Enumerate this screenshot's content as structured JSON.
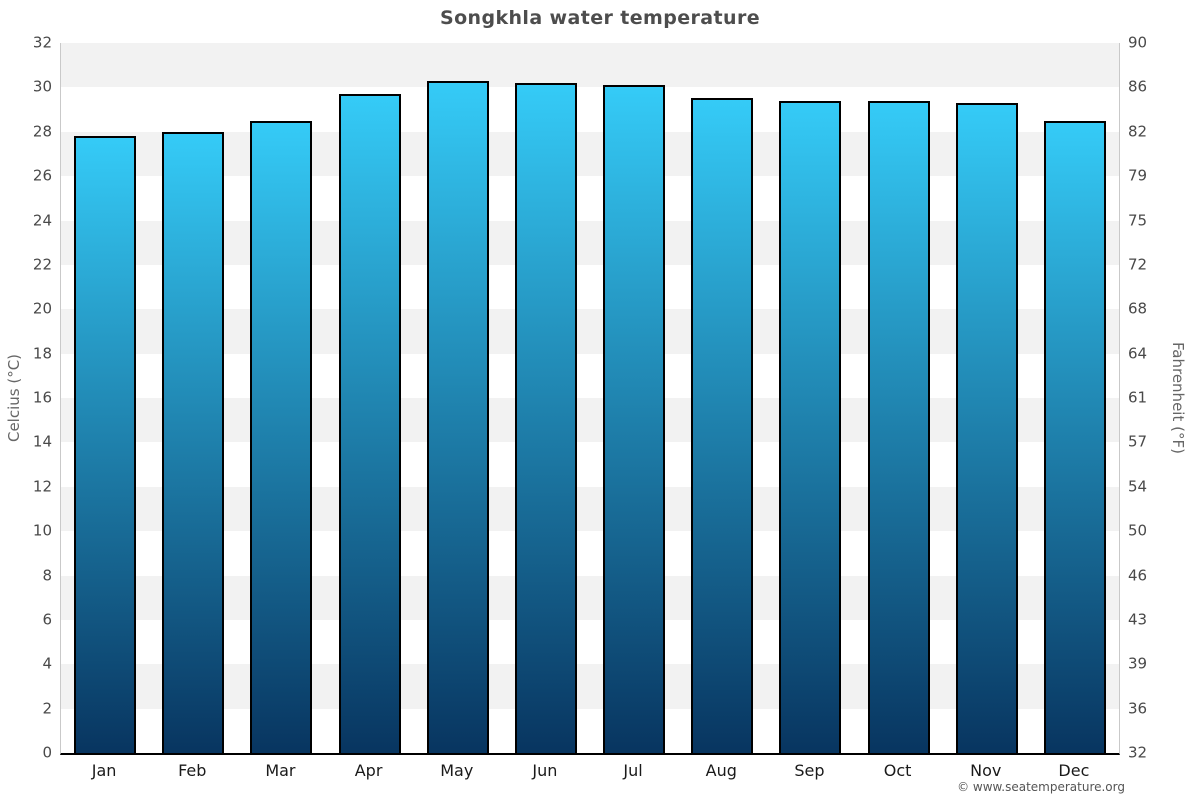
{
  "title": "Songkhla water temperature",
  "footer": "© www.seatemperature.org",
  "chart_data": {
    "type": "bar",
    "title": "Songkhla water temperature",
    "categories": [
      "Jan",
      "Feb",
      "Mar",
      "Apr",
      "May",
      "Jun",
      "Jul",
      "Aug",
      "Sep",
      "Oct",
      "Nov",
      "Dec"
    ],
    "values": [
      27.8,
      28.0,
      28.5,
      29.7,
      30.3,
      30.2,
      30.1,
      29.5,
      29.4,
      29.4,
      29.3,
      28.5
    ],
    "series_name": "Water temperature (°C)",
    "xlabel": "",
    "ylabel_left": "Celcius (°C)",
    "ylabel_right": "Fahrenheit (°F)",
    "ylim": [
      0,
      32
    ],
    "ytick_step": 2,
    "yticks_celsius": [
      32,
      30,
      28,
      26,
      24,
      22,
      20,
      18,
      16,
      14,
      12,
      10,
      8,
      6,
      4,
      2,
      0
    ],
    "yticks_fahrenheit": [
      90,
      86,
      82,
      79,
      75,
      72,
      68,
      64,
      61,
      57,
      54,
      50,
      46,
      43,
      39,
      36,
      32
    ],
    "grid": "banded-horizontal",
    "legend_position": "none",
    "colors": {
      "bar_gradient_top": "#35cbf7",
      "bar_gradient_bottom": "#083560",
      "bar_border": "#000000",
      "band_shaded": "#f2f2f2",
      "band_plain": "#ffffff",
      "axis_line": "#c9c9c9",
      "baseline": "#000000",
      "title_text": "#4d4d4d",
      "tick_text": "#494949",
      "month_text": "#1a1a1a",
      "axis_title_text": "#666666",
      "footer_text": "#555555"
    }
  }
}
